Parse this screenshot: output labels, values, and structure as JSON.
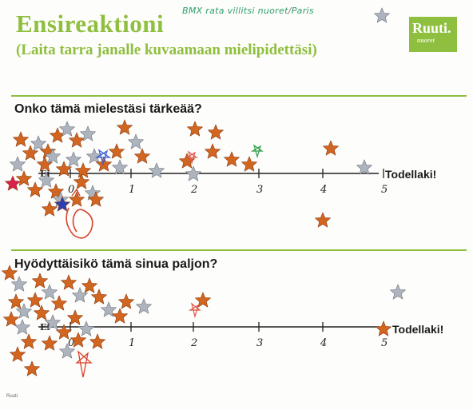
{
  "header": {
    "title": "Ensireaktioni",
    "subtitle": "(Laita tarra janalle kuvaamaan mielipidettäsi)",
    "handwritten_note": "BMX rata villitsi nuoret",
    "handwritten_note_2": "Paris",
    "logo_text": "Ruuti."
  },
  "colors": {
    "accent": "#8fbf3f",
    "star_orange": "#d2651f",
    "star_silver": "#aeb4be"
  },
  "questions": [
    {
      "text": "Onko tämä mielestäsi tärkeää?",
      "scale_start_label": "Ei",
      "scale_end_label": "Todellaki!",
      "ticks": [
        "0",
        "1",
        "2",
        "3",
        "4",
        "5"
      ]
    },
    {
      "text": "Hyödyttäisikö tämä sinua paljon?",
      "scale_start_label": "Ei",
      "scale_end_label": "Todellaki!",
      "ticks": [
        "0",
        "1",
        "2",
        "3",
        "4",
        "5"
      ]
    }
  ],
  "footer": {
    "text": "Ruuti"
  }
}
